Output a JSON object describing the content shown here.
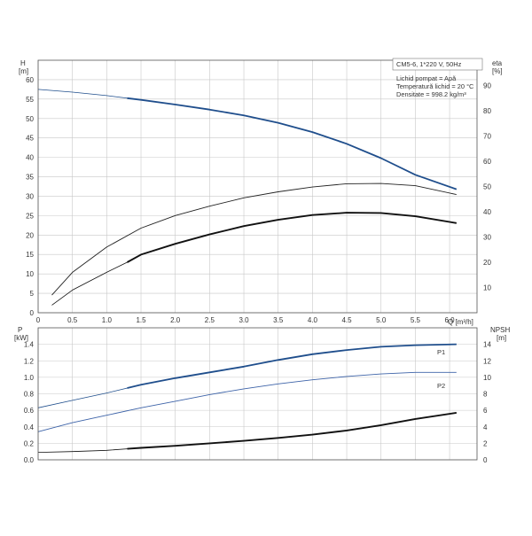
{
  "chart_data": [
    {
      "type": "line",
      "legend_title": "CM5-6, 1*220 V, 50Hz",
      "legend_lines": [
        "Lichid pompat = Apă",
        "Temperatură lichid = 20 °C",
        "Densitate = 998.2 kg/m³"
      ],
      "xlabel": "Q [m³/h]",
      "xlim": [
        0,
        6.4
      ],
      "x_ticks": [
        "0",
        "0.5",
        "1.0",
        "1.5",
        "2.0",
        "2.5",
        "3.0",
        "3.5",
        "4.0",
        "4.5",
        "5.0",
        "5.5",
        "6.0"
      ],
      "y_left": {
        "name": "H",
        "unit": "[m]",
        "lim": [
          0,
          65
        ],
        "ticks": [
          "0",
          "5",
          "10",
          "15",
          "20",
          "25",
          "30",
          "35",
          "40",
          "45",
          "50",
          "55",
          "60"
        ]
      },
      "y_right": {
        "name": "eta",
        "unit": "[%]",
        "lim": [
          0,
          100
        ],
        "ticks": [
          "0",
          "10",
          "20",
          "30",
          "40",
          "50",
          "60",
          "70",
          "80",
          "90"
        ]
      },
      "series": [
        {
          "axis": "left",
          "color": "#1f4e8c",
          "width": 1.8,
          "segment_style": "operating",
          "points": [
            [
              0,
              57.5
            ],
            [
              0.5,
              56.8
            ],
            [
              1.0,
              55.9
            ],
            [
              1.5,
              54.8
            ],
            [
              2.0,
              53.6
            ],
            [
              2.5,
              52.3
            ],
            [
              3.0,
              50.8
            ],
            [
              3.5,
              48.9
            ],
            [
              4.0,
              46.5
            ],
            [
              4.5,
              43.5
            ],
            [
              5.0,
              39.8
            ],
            [
              5.5,
              35.5
            ],
            [
              6.1,
              31.8
            ]
          ]
        },
        {
          "axis": "right",
          "color": "#222222",
          "width": 0.9,
          "segment_style": "thin",
          "points": [
            [
              0.2,
              7
            ],
            [
              0.5,
              16
            ],
            [
              1.0,
              26
            ],
            [
              1.5,
              33.5
            ],
            [
              2.0,
              38.5
            ],
            [
              2.5,
              42.2
            ],
            [
              3.0,
              45.5
            ],
            [
              3.5,
              47.9
            ],
            [
              4.0,
              49.8
            ],
            [
              4.5,
              51.1
            ],
            [
              5.0,
              51.2
            ],
            [
              5.5,
              50.3
            ],
            [
              6.1,
              46.8
            ]
          ]
        },
        {
          "axis": "right",
          "color": "#111111",
          "width": 1.9,
          "segment_style": "operating",
          "points": [
            [
              0.2,
              3
            ],
            [
              0.5,
              9
            ],
            [
              1.0,
              16
            ],
            [
              1.3,
              20
            ],
            [
              1.5,
              23
            ],
            [
              2.0,
              27.3
            ],
            [
              2.5,
              31.0
            ],
            [
              3.0,
              34.3
            ],
            [
              3.5,
              36.8
            ],
            [
              4.0,
              38.7
            ],
            [
              4.5,
              39.6
            ],
            [
              5.0,
              39.5
            ],
            [
              5.5,
              38.2
            ],
            [
              6.1,
              35.5
            ]
          ]
        }
      ]
    },
    {
      "type": "line",
      "xlim": [
        0,
        6.4
      ],
      "y_left": {
        "name": "P",
        "unit": "[kW]",
        "lim": [
          0,
          1.6
        ],
        "ticks": [
          "0.0",
          "0.2",
          "0.4",
          "0.6",
          "0.8",
          "1.0",
          "1.2",
          "1.4"
        ]
      },
      "y_right": {
        "name": "NPSH",
        "unit": "[m]",
        "lim": [
          0,
          16
        ],
        "ticks": [
          "0",
          "2",
          "4",
          "6",
          "8",
          "10",
          "12",
          "14"
        ]
      },
      "series": [
        {
          "name": "P1",
          "axis": "left",
          "color": "#1f4e8c",
          "width": 1.8,
          "segment_style": "operating",
          "points": [
            [
              0,
              0.63
            ],
            [
              0.5,
              0.72
            ],
            [
              1.0,
              0.81
            ],
            [
              1.5,
              0.91
            ],
            [
              2.0,
              0.99
            ],
            [
              2.5,
              1.06
            ],
            [
              3.0,
              1.13
            ],
            [
              3.5,
              1.21
            ],
            [
              4.0,
              1.28
            ],
            [
              4.5,
              1.33
            ],
            [
              5.0,
              1.37
            ],
            [
              5.5,
              1.39
            ],
            [
              6.1,
              1.4
            ]
          ]
        },
        {
          "name": "P2",
          "axis": "left",
          "color": "#3d63a8",
          "width": 0.9,
          "segment_style": "thin",
          "points": [
            [
              0,
              0.34
            ],
            [
              0.5,
              0.45
            ],
            [
              1.0,
              0.54
            ],
            [
              1.5,
              0.63
            ],
            [
              2.0,
              0.71
            ],
            [
              2.5,
              0.79
            ],
            [
              3.0,
              0.86
            ],
            [
              3.5,
              0.92
            ],
            [
              4.0,
              0.97
            ],
            [
              4.5,
              1.01
            ],
            [
              5.0,
              1.04
            ],
            [
              5.5,
              1.06
            ],
            [
              6.1,
              1.06
            ]
          ]
        },
        {
          "axis": "right",
          "color": "#111111",
          "width": 1.9,
          "segment_style": "operating",
          "points": [
            [
              0,
              0.9
            ],
            [
              0.5,
              1.0
            ],
            [
              1.0,
              1.15
            ],
            [
              1.5,
              1.45
            ],
            [
              2.0,
              1.7
            ],
            [
              2.5,
              2.0
            ],
            [
              3.0,
              2.3
            ],
            [
              3.5,
              2.65
            ],
            [
              4.0,
              3.05
            ],
            [
              4.5,
              3.55
            ],
            [
              5.0,
              4.2
            ],
            [
              5.5,
              4.95
            ],
            [
              6.1,
              5.7
            ]
          ]
        }
      ]
    }
  ]
}
